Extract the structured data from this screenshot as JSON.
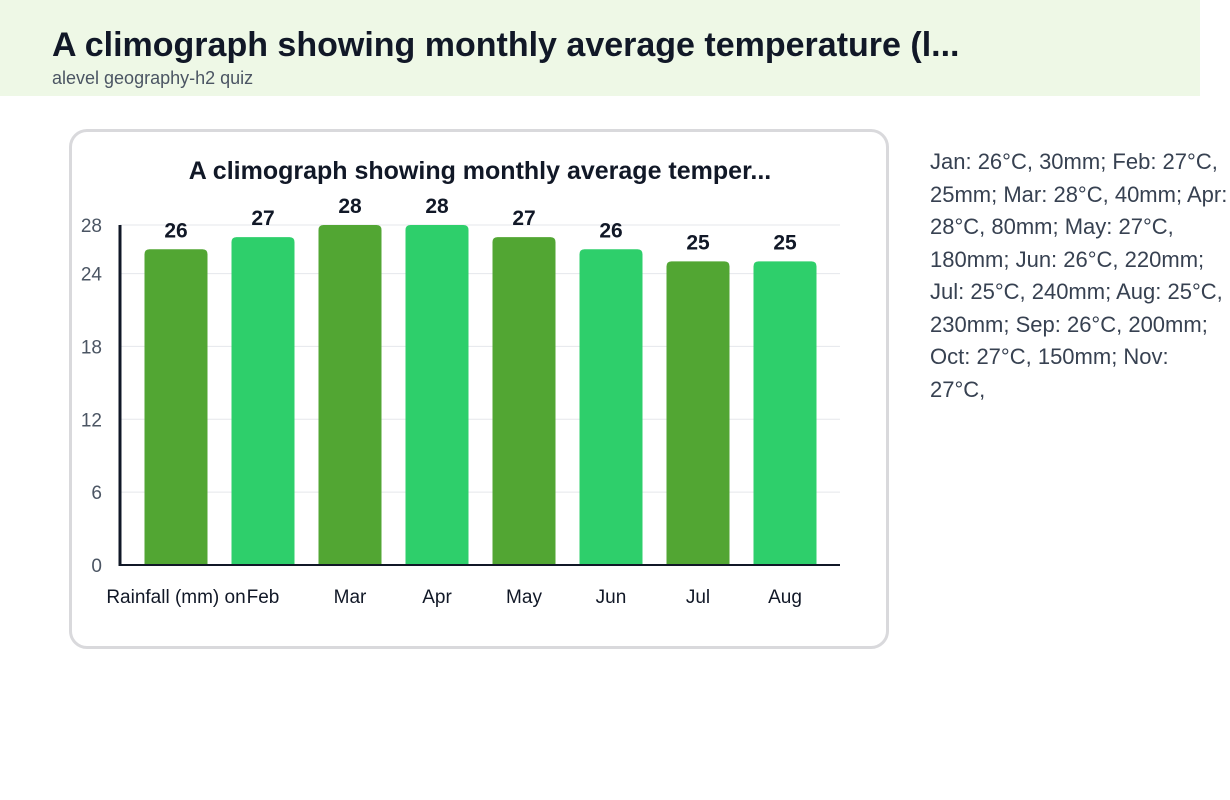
{
  "header": {
    "title": "A climograph showing monthly average temperature (l...",
    "subtitle": "alevel geography-h2 quiz"
  },
  "side_text": "Jan: 26°C, 30mm; Feb: 27°C, 25mm; Mar: 28°C, 40mm; Apr: 28°C, 80mm; May: 27°C, 180mm; Jun: 26°C, 220mm; Jul: 25°C, 240mm; Aug: 25°C, 230mm; Sep: 26°C, 200mm; Oct: 27°C, 150mm; Nov: 27°C,",
  "colors": {
    "bar_dark": "#52a633",
    "bar_light": "#2ecf6b",
    "axis": "#111827",
    "grid": "#e5e7eb",
    "tick_text": "#4b5563",
    "label_text": "#111827"
  },
  "chart_data": {
    "type": "bar",
    "title": "A climograph showing monthly average temper...",
    "categories": [
      "Rainfall (mm) on",
      "Feb",
      "Mar",
      "Apr",
      "May",
      "Jun",
      "Jul",
      "Aug"
    ],
    "values": [
      26,
      27,
      28,
      28,
      27,
      26,
      25,
      25
    ],
    "yticks": [
      0,
      6,
      12,
      18,
      24,
      28
    ],
    "ylim": [
      0,
      28
    ],
    "grid": true,
    "legend": "none",
    "data_labels": true
  }
}
